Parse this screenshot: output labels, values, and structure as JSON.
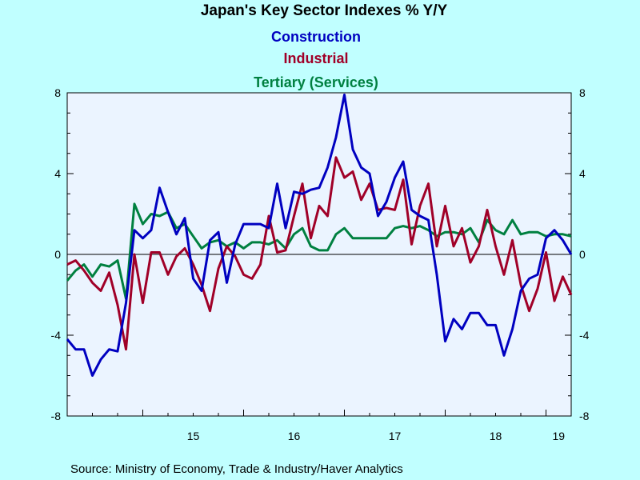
{
  "chart_data": {
    "type": "line",
    "title": "Japan's Key Sector Indexes % Y/Y",
    "source": "Source:  Ministry of Economy, Trade & Industry/Haver Analytics",
    "x_tick_labels": [
      "15",
      "16",
      "17",
      "18",
      "19"
    ],
    "x_start": "2014-04",
    "x_end": "2019-04",
    "y_ticks": [
      "8",
      "4",
      "0",
      "-4",
      "-8"
    ],
    "ylim": [
      -8,
      8
    ],
    "grid": false,
    "zero_line": true,
    "legend_placement": "top-center",
    "colors": {
      "background": "#c0ffff",
      "plot_background": "#ebf4ff",
      "construction": "#0000c0",
      "industrial": "#a00028",
      "tertiary": "#008040"
    },
    "series": [
      {
        "name": "Construction",
        "values": [
          -4.2,
          -4.7,
          -4.7,
          -6.0,
          -5.2,
          -4.7,
          -4.8,
          -2.4,
          1.2,
          0.8,
          1.2,
          3.3,
          2.1,
          1.0,
          1.8,
          -1.2,
          -1.8,
          0.7,
          1.1,
          -1.4,
          0.5,
          1.5,
          1.5,
          1.5,
          1.3,
          3.5,
          1.3,
          3.1,
          3.0,
          3.2,
          3.3,
          4.3,
          5.8,
          7.9,
          5.2,
          4.3,
          4.0,
          1.9,
          2.6,
          3.8,
          4.6,
          2.2,
          1.9,
          1.7,
          -1.0,
          -4.3,
          -3.2,
          -3.7,
          -2.9,
          -2.9,
          -3.5,
          -3.5,
          -5.0,
          -3.7,
          -1.8,
          -1.2,
          -1.0,
          0.8,
          1.2,
          0.7,
          0.0
        ]
      },
      {
        "name": "Industrial",
        "values": [
          -0.5,
          -0.3,
          -0.8,
          -1.4,
          -1.8,
          -0.9,
          -2.5,
          -4.7,
          0.0,
          -2.4,
          0.1,
          0.1,
          -1.0,
          -0.1,
          0.3,
          -0.5,
          -1.5,
          -2.8,
          -0.7,
          0.4,
          -0.1,
          -1.0,
          -1.2,
          -0.5,
          1.9,
          0.1,
          0.2,
          1.9,
          3.5,
          0.8,
          2.4,
          1.9,
          4.8,
          3.8,
          4.1,
          2.7,
          3.5,
          2.2,
          2.3,
          2.2,
          3.7,
          0.5,
          2.4,
          3.5,
          0.4,
          2.4,
          0.4,
          1.3,
          -0.4,
          0.4,
          2.2,
          0.4,
          -1.0,
          0.7,
          -1.5,
          -2.8,
          -1.7,
          0.1,
          -2.3,
          -1.1,
          -2.0
        ]
      },
      {
        "name": "Tertiary (Services)",
        "values": [
          -1.3,
          -0.8,
          -0.5,
          -1.1,
          -0.5,
          -0.6,
          -0.3,
          -2.2,
          2.5,
          1.5,
          2.0,
          1.9,
          2.1,
          1.3,
          1.5,
          0.9,
          0.3,
          0.6,
          0.7,
          0.4,
          0.6,
          0.3,
          0.6,
          0.6,
          0.5,
          0.7,
          0.3,
          1.0,
          1.3,
          0.4,
          0.2,
          0.2,
          1.0,
          1.3,
          0.8,
          0.8,
          0.8,
          0.8,
          0.8,
          1.3,
          1.4,
          1.3,
          1.4,
          1.2,
          0.9,
          1.1,
          1.1,
          1.0,
          1.3,
          0.6,
          1.7,
          1.2,
          1.0,
          1.7,
          1.0,
          1.1,
          1.1,
          0.9,
          1.0,
          1.0,
          0.9
        ]
      }
    ]
  }
}
